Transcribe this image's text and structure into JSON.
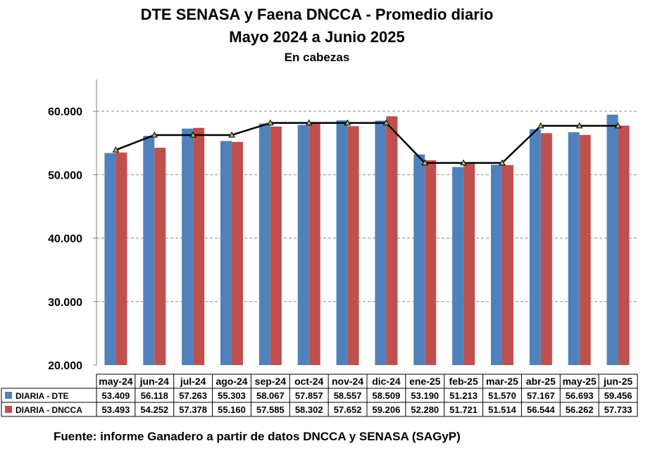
{
  "chart_data": {
    "type": "bar",
    "title": "DTE SENASA y Faena DNCCA - Promedio diario",
    "subtitle": "Mayo 2024 a Junio 2025",
    "unit_label": "En cabezas",
    "categories": [
      "may-24",
      "jun-24",
      "jul-24",
      "ago-24",
      "sep-24",
      "oct-24",
      "nov-24",
      "dic-24",
      "ene-25",
      "feb-25",
      "mar-25",
      "abr-25",
      "may-25",
      "jun-25"
    ],
    "series": [
      {
        "name": "DIARIA -  DTE",
        "color": "#4f81bd",
        "values": [
          53409,
          56118,
          57263,
          55303,
          58067,
          57857,
          58557,
          58509,
          53190,
          51213,
          51570,
          57167,
          56693,
          59456
        ],
        "labels": [
          "53.409",
          "56.118",
          "57.263",
          "55.303",
          "58.067",
          "57.857",
          "58.557",
          "58.509",
          "53.190",
          "51.213",
          "51.570",
          "57.167",
          "56.693",
          "59.456"
        ]
      },
      {
        "name": "DIARIA - DNCCA",
        "color": "#c0504d",
        "values": [
          53493,
          54252,
          57378,
          55160,
          57585,
          58302,
          57652,
          59206,
          52280,
          51721,
          51514,
          56544,
          56262,
          57733
        ],
        "labels": [
          "53.493",
          "54.252",
          "57.378",
          "55.160",
          "57.585",
          "58.302",
          "57.652",
          "59.206",
          "52.280",
          "51.721",
          "51.514",
          "56.544",
          "56.262",
          "57.733"
        ]
      }
    ],
    "trend_line": {
      "color": "#000000",
      "marker_color": "#9bbb59",
      "values": [
        53900,
        56250,
        56250,
        56250,
        58150,
        58150,
        58150,
        58150,
        51850,
        51850,
        51850,
        57700,
        57700,
        57700
      ]
    },
    "yticks": [
      20000,
      30000,
      40000,
      50000,
      60000
    ],
    "ytick_labels": [
      "20.000",
      "30.000",
      "40.000",
      "50.000",
      "60.000"
    ],
    "ylim": [
      20000,
      65000
    ],
    "grid": "dashed horizontal",
    "legend": "data-table"
  },
  "footer": "Fuente: informe Ganadero a partir de datos DNCCA y SENASA (SAGyP)"
}
